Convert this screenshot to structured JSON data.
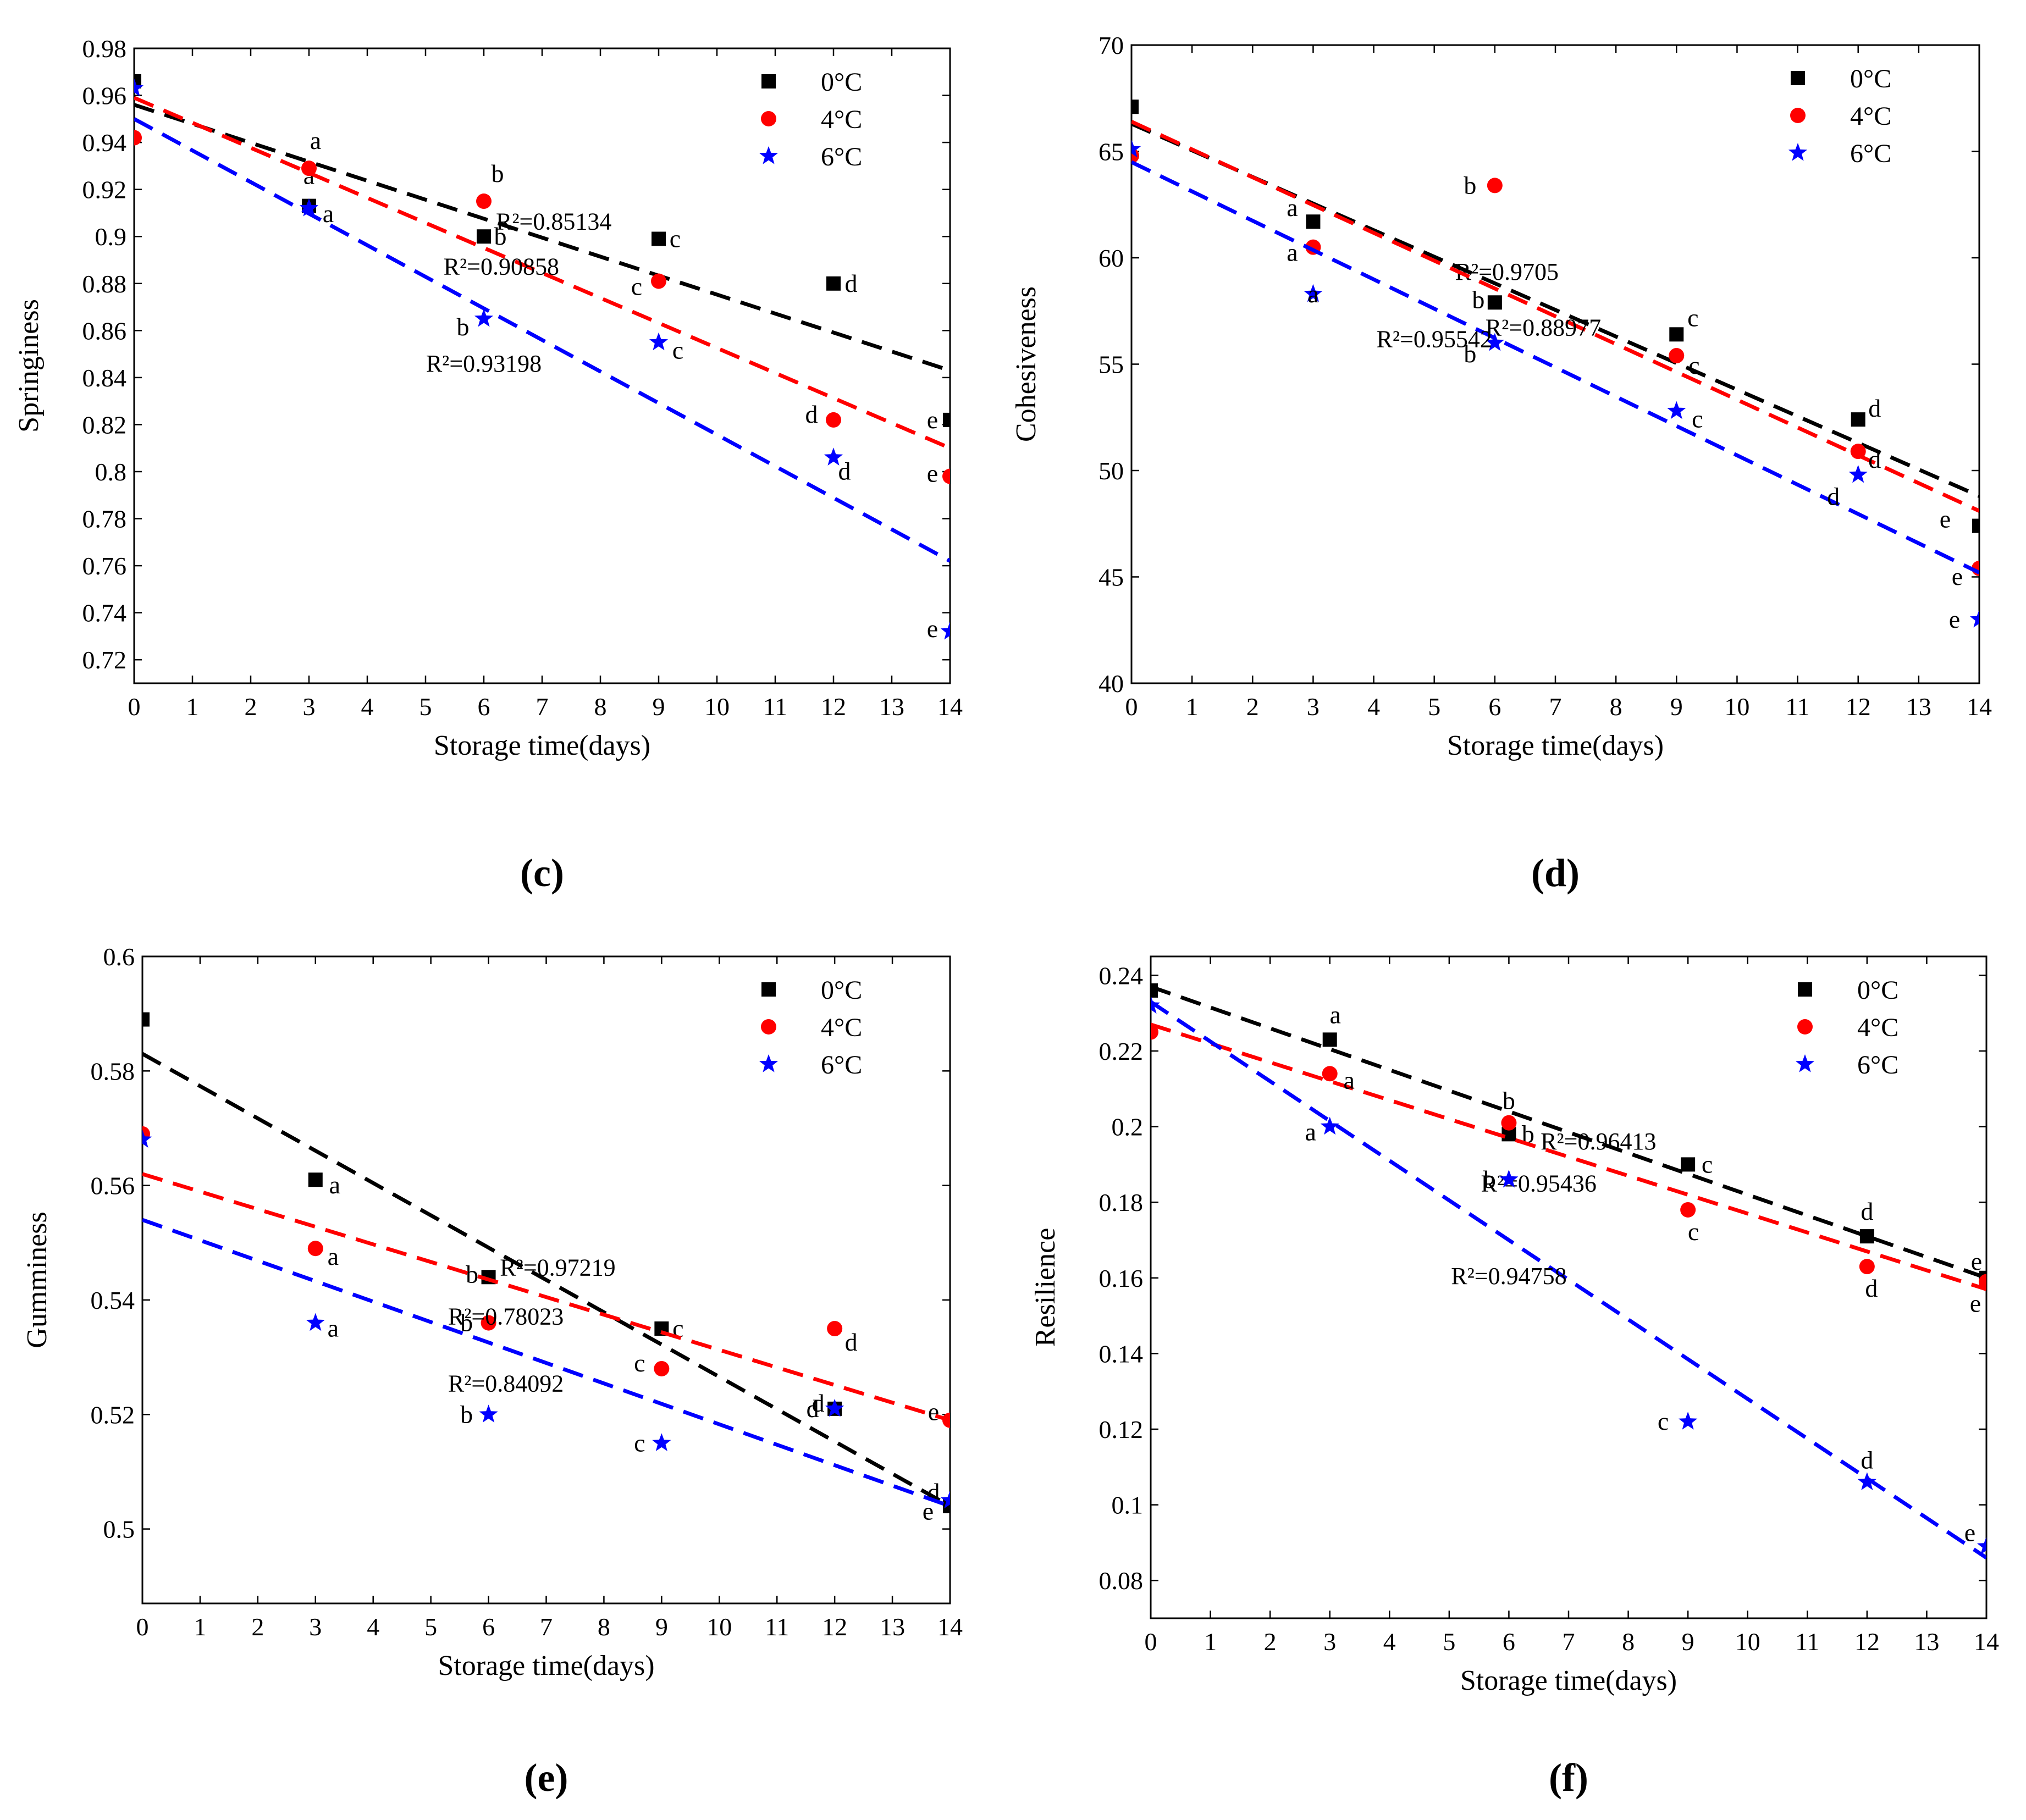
{
  "series_defs": [
    {
      "name": "0°C",
      "color": "#000000",
      "marker": "square"
    },
    {
      "name": "4°C",
      "color": "#ff0000",
      "marker": "circle"
    },
    {
      "name": "6°C",
      "color": "#0000ff",
      "marker": "star"
    }
  ],
  "chart_data": [
    {
      "type": "scatter",
      "caption": "(c)",
      "letter": "c",
      "xlabel": "Storage time(days)",
      "ylabel": "Springiness",
      "xlim": [
        0,
        14
      ],
      "ylim": [
        0.71,
        0.98
      ],
      "xticks": [
        0,
        1,
        2,
        3,
        4,
        5,
        6,
        7,
        8,
        9,
        10,
        11,
        12,
        13,
        14
      ],
      "yticks": [
        0.72,
        0.74,
        0.76,
        0.78,
        0.8,
        0.82,
        0.84,
        0.86,
        0.88,
        0.9,
        0.92,
        0.94,
        0.96,
        0.98
      ],
      "ytick_labels": [
        "0.72",
        "0.74",
        "0.76",
        "0.78",
        "0.8",
        "0.82",
        "0.84",
        "0.86",
        "0.88",
        "0.9",
        "0.92",
        "0.94",
        "0.96",
        "0.98"
      ],
      "legend": "top-right",
      "series": [
        {
          "name": "0°C",
          "x": [
            0,
            3,
            6,
            9,
            12,
            14
          ],
          "y": [
            0.966,
            0.913,
            0.9,
            0.899,
            0.88,
            0.822
          ],
          "letters": [
            "",
            "a",
            "b",
            "c",
            "d",
            "e"
          ],
          "fit": [
            0.956,
            0.843
          ],
          "r2": "R²=0.85134"
        },
        {
          "name": "4°C",
          "x": [
            0,
            3,
            6,
            9,
            12,
            14
          ],
          "y": [
            0.942,
            0.929,
            0.915,
            0.881,
            0.822,
            0.798
          ],
          "letters": [
            "",
            "a",
            "b",
            "c",
            "d",
            "e"
          ],
          "fit": [
            0.959,
            0.81
          ],
          "r2": "R²=0.90858"
        },
        {
          "name": "6°C",
          "x": [
            0,
            3,
            6,
            9,
            12,
            14
          ],
          "y": [
            0.963,
            0.912,
            0.865,
            0.855,
            0.806,
            0.732
          ],
          "letters": [
            "",
            "a",
            "b",
            "c",
            "d",
            "e"
          ],
          "fit": [
            0.95,
            0.762
          ],
          "r2": "R²=0.93198"
        }
      ]
    },
    {
      "type": "scatter",
      "caption": "(d)",
      "letter": "d",
      "xlabel": "Storage time(days)",
      "ylabel": "Cohesiveness",
      "xlim": [
        0,
        14
      ],
      "ylim": [
        40,
        70
      ],
      "xticks": [
        0,
        1,
        2,
        3,
        4,
        5,
        6,
        7,
        8,
        9,
        10,
        11,
        12,
        13,
        14
      ],
      "yticks": [
        40,
        45,
        50,
        55,
        60,
        65,
        70
      ],
      "ytick_labels": [
        "40",
        "45",
        "50",
        "55",
        "60",
        "65",
        "70"
      ],
      "legend": "top-right",
      "series": [
        {
          "name": "0°C",
          "x": [
            0,
            3,
            6,
            9,
            12,
            14
          ],
          "y": [
            67.1,
            61.7,
            57.9,
            56.4,
            52.4,
            47.4
          ],
          "letters": [
            "",
            "a",
            "b",
            "c",
            "d",
            "e"
          ],
          "fit": [
            66.3,
            48.8
          ],
          "r2": "R²=0.9705"
        },
        {
          "name": "4°C",
          "x": [
            0,
            3,
            6,
            9,
            12,
            14
          ],
          "y": [
            64.8,
            60.5,
            63.4,
            55.4,
            50.9,
            45.4
          ],
          "letters": [
            "",
            "a",
            "b",
            "c",
            "d",
            "e"
          ],
          "fit": [
            66.4,
            48.1
          ],
          "r2": "R²=0.88977"
        },
        {
          "name": "6°C",
          "x": [
            0,
            3,
            6,
            9,
            12,
            14
          ],
          "y": [
            65.1,
            58.3,
            56.0,
            52.8,
            49.8,
            43.0
          ],
          "letters": [
            "",
            "a",
            "b",
            "c",
            "d",
            "e"
          ],
          "fit": [
            64.5,
            45.2
          ],
          "r2": "R²=0.95542"
        }
      ]
    },
    {
      "type": "scatter",
      "caption": "(e)",
      "letter": "e",
      "xlabel": "Storage time(days)",
      "ylabel": "Gumminess",
      "xlim": [
        0,
        14
      ],
      "ylim": [
        0.487,
        0.6
      ],
      "xticks": [
        0,
        1,
        2,
        3,
        4,
        5,
        6,
        7,
        8,
        9,
        10,
        11,
        12,
        13,
        14
      ],
      "yticks": [
        0.5,
        0.52,
        0.54,
        0.56,
        0.58,
        0.6
      ],
      "ytick_labels": [
        "0.5",
        "0.52",
        "0.54",
        "0.56",
        "0.58",
        "0.6"
      ],
      "legend": "top-right",
      "series": [
        {
          "name": "0°C",
          "x": [
            0,
            3,
            6,
            9,
            12,
            14
          ],
          "y": [
            0.589,
            0.561,
            0.544,
            0.535,
            0.521,
            0.504
          ],
          "letters": [
            "",
            "a",
            "b",
            "c",
            "d",
            "d"
          ],
          "fit": [
            0.583,
            0.504
          ],
          "r2": "R²=0.97219"
        },
        {
          "name": "4°C",
          "x": [
            0,
            3,
            6,
            9,
            12,
            14
          ],
          "y": [
            0.569,
            0.549,
            0.536,
            0.528,
            0.535,
            0.519
          ],
          "letters": [
            "",
            "a",
            "b",
            "c",
            "d",
            "e"
          ],
          "fit": [
            0.562,
            0.519
          ],
          "r2": "R²=0.78023"
        },
        {
          "name": "6°C",
          "x": [
            0,
            3,
            6,
            9,
            12,
            14
          ],
          "y": [
            0.568,
            0.536,
            0.52,
            0.515,
            0.521,
            0.505
          ],
          "letters": [
            "",
            "a",
            "b",
            "c",
            "d",
            "e"
          ],
          "fit": [
            0.554,
            0.504
          ],
          "r2": "R²=0.84092"
        }
      ]
    },
    {
      "type": "scatter",
      "caption": "(f)",
      "letter": "f",
      "xlabel": "Storage time(days)",
      "ylabel": "Resilience",
      "xlim": [
        0,
        14
      ],
      "ylim": [
        0.07,
        0.245
      ],
      "xticks": [
        0,
        1,
        2,
        3,
        4,
        5,
        6,
        7,
        8,
        9,
        10,
        11,
        12,
        13,
        14
      ],
      "yticks": [
        0.08,
        0.1,
        0.12,
        0.14,
        0.16,
        0.18,
        0.2,
        0.22,
        0.24
      ],
      "ytick_labels": [
        "0.08",
        "0.1",
        "0.12",
        "0.14",
        "0.16",
        "0.18",
        "0.2",
        "0.22",
        "0.24"
      ],
      "legend": "top-right",
      "series": [
        {
          "name": "0°C",
          "x": [
            0,
            3,
            6,
            9,
            12,
            14
          ],
          "y": [
            0.236,
            0.223,
            0.198,
            0.19,
            0.171,
            0.16
          ],
          "letters": [
            "",
            "a",
            "b",
            "c",
            "d",
            "e"
          ],
          "fit": [
            0.237,
            0.16
          ],
          "r2": "R²=0.96413"
        },
        {
          "name": "4°C",
          "x": [
            0,
            3,
            6,
            9,
            12,
            14
          ],
          "y": [
            0.225,
            0.214,
            0.201,
            0.178,
            0.163,
            0.159
          ],
          "letters": [
            "",
            "a",
            "b",
            "c",
            "d",
            "e"
          ],
          "fit": [
            0.227,
            0.157
          ],
          "r2": "R²=0.95436"
        },
        {
          "name": "6°C",
          "x": [
            0,
            3,
            6,
            9,
            12,
            14
          ],
          "y": [
            0.232,
            0.2,
            0.186,
            0.122,
            0.106,
            0.089
          ],
          "letters": [
            "",
            "a",
            "b",
            "c",
            "d",
            "e"
          ],
          "fit": [
            0.233,
            0.086
          ],
          "r2": "R²=0.94758"
        }
      ]
    }
  ]
}
